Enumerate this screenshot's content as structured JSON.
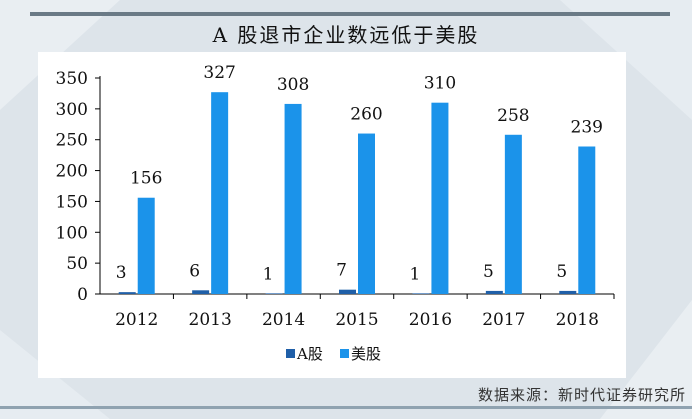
{
  "colors": {
    "a_share": "#1f5fa8",
    "us_share": "#1b93ea",
    "axis": "#000000",
    "text": "#111111"
  },
  "chart_data": {
    "type": "bar",
    "title": "A 股退市企业数远低于美股",
    "categories": [
      "2012",
      "2013",
      "2014",
      "2015",
      "2016",
      "2017",
      "2018"
    ],
    "series": [
      {
        "name": "A股",
        "values": [
          3,
          6,
          1,
          7,
          1,
          5,
          5
        ]
      },
      {
        "name": "美股",
        "values": [
          156,
          327,
          308,
          260,
          310,
          258,
          239
        ]
      }
    ],
    "yticks": [
      "0",
      "50",
      "100",
      "150",
      "200",
      "250",
      "300",
      "350"
    ],
    "ylim": [
      0,
      350
    ],
    "legend_position": "bottom",
    "grid": false
  },
  "footer": {
    "source": "数据来源：新时代证券研究所"
  }
}
